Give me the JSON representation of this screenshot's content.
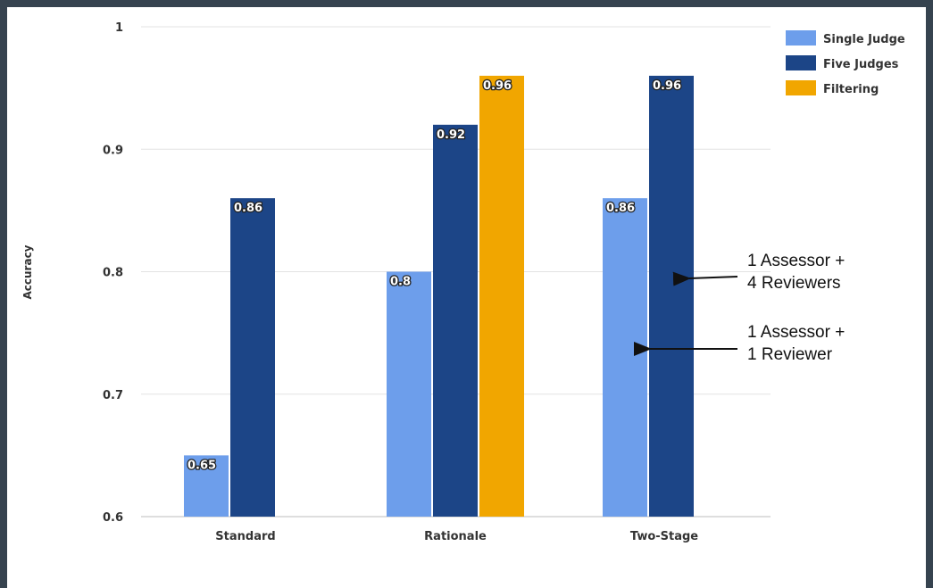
{
  "chart_data": {
    "type": "bar",
    "categories": [
      "Standard",
      "Rationale",
      "Two-Stage"
    ],
    "series": [
      {
        "name": "Single Judge",
        "values": [
          0.65,
          0.8,
          0.86
        ]
      },
      {
        "name": "Five Judges",
        "values": [
          0.86,
          0.92,
          0.96
        ]
      },
      {
        "name": "Filtering",
        "values": [
          null,
          0.96,
          null
        ]
      }
    ],
    "data_labels": [
      [
        "0.65",
        "0.8",
        "0.86"
      ],
      [
        "0.86",
        "0.92",
        "0.96"
      ],
      [
        null,
        "0.96",
        null
      ]
    ],
    "ylabel": "Accuracy",
    "xlabel": "",
    "ylim": [
      0.6,
      1.0
    ],
    "yticks": [
      "0.6",
      "0.7",
      "0.8",
      "0.9",
      "1"
    ],
    "yticks_values": [
      0.6,
      0.7,
      0.8,
      0.9,
      1.0
    ],
    "grid": true,
    "legend_position": "top-right",
    "colors": {
      "Single Judge": "#6d9eeb",
      "Five Judges": "#1c4587",
      "Filtering": "#f1a600",
      "grid": "#e3e3e3",
      "frame": "#36434f"
    },
    "annotations": [
      {
        "lines": [
          "1 Assessor +",
          "4 Reviewers"
        ],
        "points_to": "Two-Stage / Five Judges"
      },
      {
        "lines": [
          "1 Assessor +",
          "1 Reviewer"
        ],
        "points_to": "Two-Stage / Single Judge"
      }
    ]
  }
}
